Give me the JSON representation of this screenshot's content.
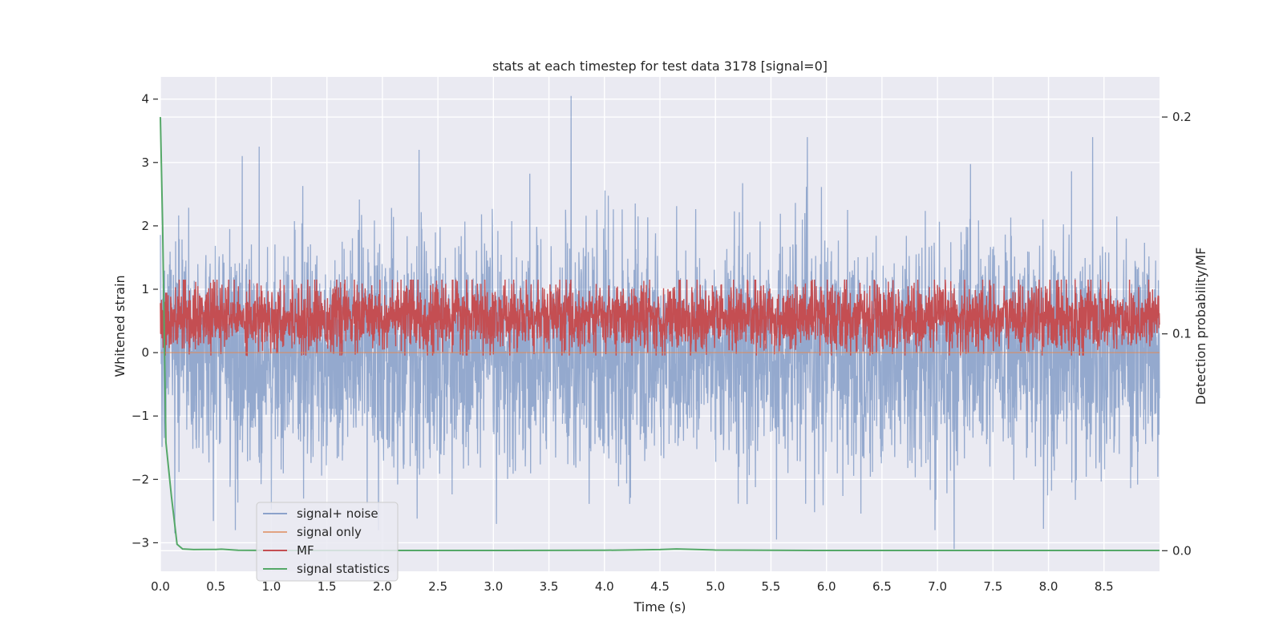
{
  "chart_data": {
    "type": "line",
    "title": "stats at each timestep for test data 3178 [signal=0]",
    "xlabel": "Time (s)",
    "ylabel": "Whitened strain",
    "y2label": "Detection probability/MF",
    "xlim": [
      0.0,
      9.0
    ],
    "ylim": [
      -3.45,
      4.35
    ],
    "y2lim": [
      -0.0095,
      0.2185
    ],
    "xticks": [
      0.0,
      0.5,
      1.0,
      1.5,
      2.0,
      2.5,
      3.0,
      3.5,
      4.0,
      4.5,
      5.0,
      5.5,
      6.0,
      6.5,
      7.0,
      7.5,
      8.0,
      8.5
    ],
    "xtick_labels": [
      "0.0",
      "0.5",
      "1.0",
      "1.5",
      "2.0",
      "2.5",
      "3.0",
      "3.5",
      "4.0",
      "4.5",
      "5.0",
      "5.5",
      "6.0",
      "6.5",
      "7.0",
      "7.5",
      "8.0",
      "8.5"
    ],
    "yticks": [
      -3,
      -2,
      -1,
      0,
      1,
      2,
      3,
      4
    ],
    "ytick_labels": [
      "−3",
      "−2",
      "−1",
      "0",
      "1",
      "2",
      "3",
      "4"
    ],
    "y2ticks": [
      0.0,
      0.1,
      0.2
    ],
    "y2tick_labels": [
      "0.0",
      "0.1",
      "0.2"
    ],
    "grid": true,
    "legend_position": "lower-left",
    "series": [
      {
        "name": "signal+ noise",
        "color": "#4c72b0",
        "axis": "left",
        "kind": "noise",
        "approx_range": [
          -3.1,
          4.0
        ],
        "notable_peaks": [
          {
            "x": 0.89,
            "y": 3.25
          },
          {
            "x": 2.33,
            "y": 3.2
          },
          {
            "x": 3.7,
            "y": 4.05
          }
        ],
        "notable_dips": [
          {
            "x": 7.15,
            "y": -3.1
          },
          {
            "x": 0.13,
            "y": -2.85
          },
          {
            "x": 5.55,
            "y": -2.95
          }
        ]
      },
      {
        "name": "signal only",
        "color": "#dd8452",
        "axis": "left",
        "kind": "flat",
        "values_note": "zero signal"
      },
      {
        "name": "MF",
        "color": "#c44e52",
        "axis": "right",
        "kind": "band",
        "approx_range": [
          0.09,
          0.125
        ]
      },
      {
        "name": "signal statistics",
        "color": "#55a868",
        "axis": "right",
        "kind": "line",
        "x": [
          0.0,
          0.02,
          0.05,
          0.1,
          0.15,
          0.2,
          0.3,
          0.5,
          0.55,
          0.7,
          1.0,
          2.0,
          3.0,
          4.0,
          4.5,
          4.65,
          5.0,
          6.0,
          7.0,
          8.0,
          9.0
        ],
        "y": [
          0.2,
          0.15,
          0.05,
          0.025,
          0.003,
          0.0008,
          0.0005,
          0.0006,
          0.0007,
          0.0002,
          0.0001,
          0.0001,
          0.0001,
          0.0002,
          0.0005,
          0.0008,
          0.0003,
          0.0001,
          0.0001,
          0.0001,
          0.0001
        ]
      }
    ]
  }
}
